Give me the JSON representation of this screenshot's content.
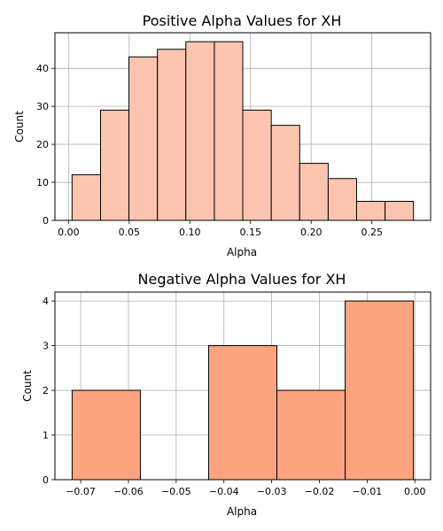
{
  "chart_data": [
    {
      "type": "bar",
      "title": "Positive Alpha Values for XH",
      "xlabel": "Alpha",
      "ylabel": "Count",
      "bins": [
        {
          "x0": 0.0029,
          "x1": 0.0264,
          "count": 12
        },
        {
          "x0": 0.0264,
          "x1": 0.0498,
          "count": 29
        },
        {
          "x0": 0.0498,
          "x1": 0.0733,
          "count": 43
        },
        {
          "x0": 0.0733,
          "x1": 0.0967,
          "count": 45
        },
        {
          "x0": 0.0967,
          "x1": 0.1202,
          "count": 47
        },
        {
          "x0": 0.1202,
          "x1": 0.1436,
          "count": 47
        },
        {
          "x0": 0.1436,
          "x1": 0.1671,
          "count": 29
        },
        {
          "x0": 0.1671,
          "x1": 0.1905,
          "count": 25
        },
        {
          "x0": 0.1905,
          "x1": 0.214,
          "count": 15
        },
        {
          "x0": 0.214,
          "x1": 0.2374,
          "count": 11
        },
        {
          "x0": 0.2374,
          "x1": 0.2609,
          "count": 5
        },
        {
          "x0": 0.2609,
          "x1": 0.2843,
          "count": 5
        }
      ],
      "xlim": [
        -0.0112,
        0.2984
      ],
      "ylim": [
        0,
        49.35
      ],
      "xticks": [
        0.0,
        0.05,
        0.1,
        0.15,
        0.2,
        0.25
      ],
      "xticklabels": [
        "0.00",
        "0.05",
        "0.10",
        "0.15",
        "0.20",
        "0.25"
      ],
      "yticks": [
        0,
        10,
        20,
        30,
        40
      ],
      "yticklabels": [
        "0",
        "10",
        "20",
        "30",
        "40"
      ],
      "color": "#fdc5b0",
      "grid": true
    },
    {
      "type": "bar",
      "title": "Negative Alpha Values for XH",
      "xlabel": "Alpha",
      "ylabel": "Count",
      "bins": [
        {
          "x0": -0.0718,
          "x1": -0.0575,
          "count": 2
        },
        {
          "x0": -0.0575,
          "x1": -0.0432,
          "count": 0
        },
        {
          "x0": -0.0432,
          "x1": -0.0289,
          "count": 3
        },
        {
          "x0": -0.0289,
          "x1": -0.0146,
          "count": 2
        },
        {
          "x0": -0.0146,
          "x1": -0.0003,
          "count": 4
        }
      ],
      "xlim": [
        -0.0754,
        0.0033
      ],
      "ylim": [
        0,
        4.2
      ],
      "xticks": [
        -0.07,
        -0.06,
        -0.05,
        -0.04,
        -0.03,
        -0.02,
        -0.01,
        0.0
      ],
      "xticklabels": [
        "−0.07",
        "−0.06",
        "−0.05",
        "−0.04",
        "−0.03",
        "−0.02",
        "−0.01",
        "0.00"
      ],
      "yticks": [
        0,
        1,
        2,
        3,
        4
      ],
      "yticklabels": [
        "0",
        "1",
        "2",
        "3",
        "4"
      ],
      "color": "#fca480",
      "grid": true
    }
  ]
}
